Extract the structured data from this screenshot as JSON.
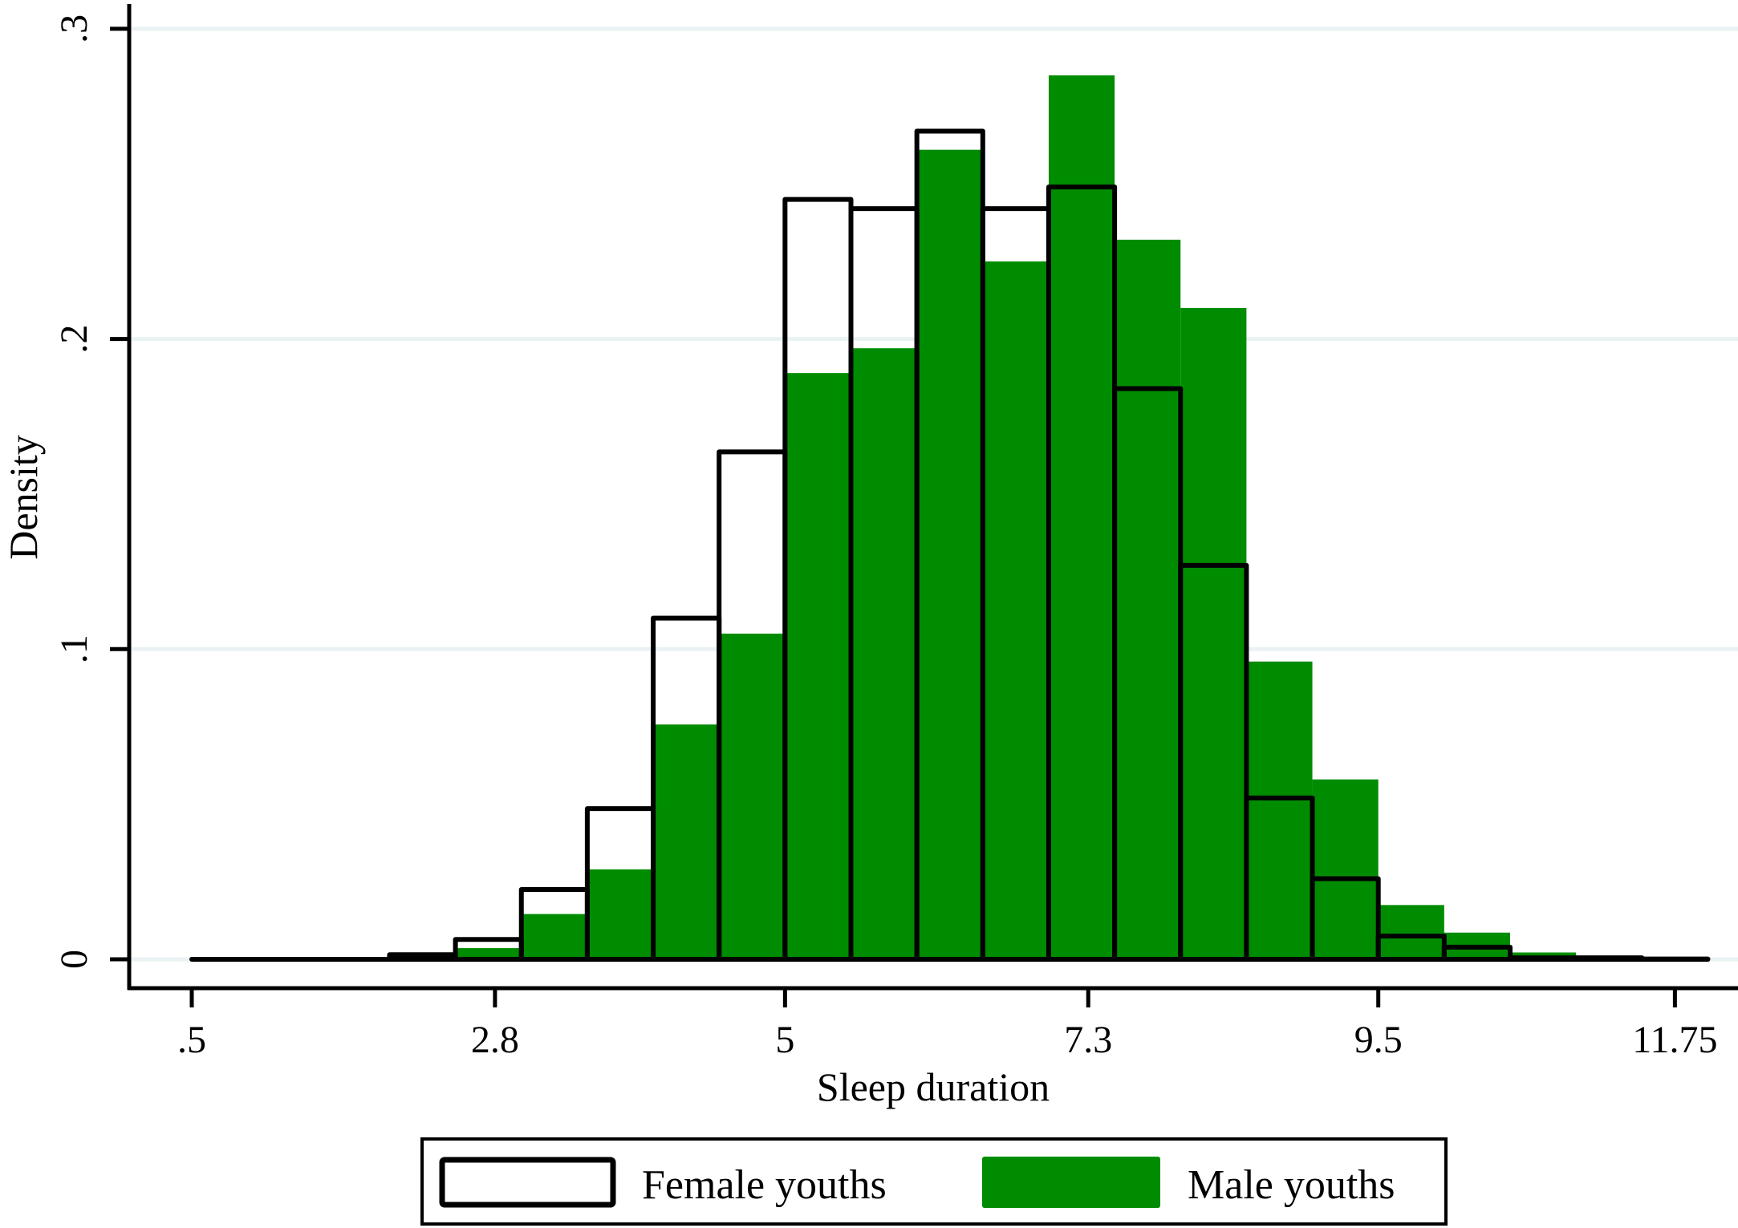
{
  "chart_data": {
    "type": "bar",
    "subtype": "overlaid-histogram",
    "title": "",
    "xlabel": "Sleep duration",
    "ylabel": "Density",
    "xlim": [
      0.5,
      12.0
    ],
    "ylim": [
      0,
      0.3
    ],
    "bin_width": 0.5,
    "bin_starts": [
      0.5,
      1.0,
      1.5,
      2.0,
      2.5,
      3.0,
      3.5,
      4.0,
      4.5,
      5.0,
      5.5,
      6.0,
      6.5,
      7.0,
      7.5,
      8.0,
      8.5,
      9.0,
      9.5,
      10.0,
      10.5,
      11.0,
      11.5
    ],
    "x_ticks": [
      {
        "value": 0.5,
        "label": ".5"
      },
      {
        "value": 2.8,
        "label": "2.8"
      },
      {
        "value": 5.0,
        "label": "5"
      },
      {
        "value": 7.3,
        "label": "7.3"
      },
      {
        "value": 9.5,
        "label": "9.5"
      },
      {
        "value": 11.75,
        "label": "11.75"
      }
    ],
    "y_ticks": [
      {
        "value": 0,
        "label": "0"
      },
      {
        "value": 0.1,
        "label": ".1"
      },
      {
        "value": 0.2,
        "label": ".2"
      },
      {
        "value": 0.3,
        "label": ".3"
      }
    ],
    "grid": "horizontal",
    "legend_position": "bottom",
    "series": [
      {
        "name": "Male youths",
        "style": "filled",
        "color": "#008c00",
        "values": [
          0,
          0.0007,
          0,
          0.0005,
          0.0036,
          0.0146,
          0.029,
          0.0757,
          0.105,
          0.189,
          0.197,
          0.261,
          0.225,
          0.285,
          0.232,
          0.21,
          0.096,
          0.058,
          0.0175,
          0.0086,
          0.0022,
          0.0003,
          0
        ]
      },
      {
        "name": "Female youths",
        "style": "outline",
        "color": "#000000",
        "values": [
          0,
          0,
          0,
          0.0015,
          0.0064,
          0.0225,
          0.0486,
          0.11,
          0.1636,
          0.245,
          0.242,
          0.267,
          0.242,
          0.249,
          0.184,
          0.127,
          0.052,
          0.026,
          0.0075,
          0.0039,
          0.0005,
          0.0005,
          0.0001
        ]
      }
    ]
  },
  "legend": {
    "items": [
      {
        "label": "Female youths",
        "style": "outline"
      },
      {
        "label": "Male youths",
        "style": "filled",
        "color": "#008c00"
      }
    ]
  },
  "colors": {
    "grid": "#eaf2f3",
    "male_fill": "#008c00",
    "female_outline": "#000000"
  }
}
